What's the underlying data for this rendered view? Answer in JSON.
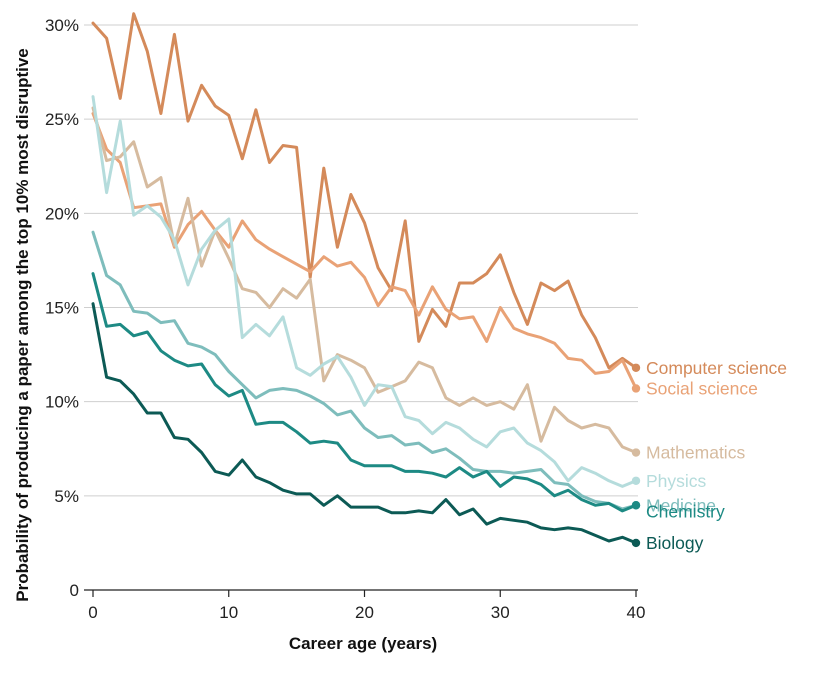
{
  "chart_data": {
    "type": "line",
    "title": "",
    "xlabel": "Career age (years)",
    "ylabel": "Probability of producing a paper among the top 10% most disruptive",
    "xlim": [
      0,
      40
    ],
    "ylim": [
      0,
      30
    ],
    "x_ticks": [
      {
        "value": 0,
        "label": "0"
      },
      {
        "value": 10,
        "label": "10"
      },
      {
        "value": 20,
        "label": "20"
      },
      {
        "value": 30,
        "label": "30"
      },
      {
        "value": 40,
        "label": "40"
      }
    ],
    "y_ticks": [
      {
        "value": 0,
        "label": "0"
      },
      {
        "value": 5,
        "label": "5%"
      },
      {
        "value": 10,
        "label": "10%"
      },
      {
        "value": 15,
        "label": "15%"
      },
      {
        "value": 20,
        "label": "20%"
      },
      {
        "value": 25,
        "label": "25%"
      },
      {
        "value": 30,
        "label": "30%"
      }
    ],
    "grid": "horizontal",
    "legend": "direct labels at right end of lines",
    "x": [
      0,
      1,
      2,
      3,
      4,
      5,
      6,
      7,
      8,
      9,
      10,
      11,
      12,
      13,
      14,
      15,
      16,
      17,
      18,
      19,
      20,
      21,
      22,
      23,
      24,
      25,
      26,
      27,
      28,
      29,
      30,
      31,
      32,
      33,
      34,
      35,
      36,
      37,
      38,
      39,
      40
    ],
    "series": [
      {
        "name": "Computer science",
        "color": "#D48A5A",
        "label_offset": 0,
        "values": [
          30.1,
          29.3,
          26.1,
          30.6,
          28.6,
          25.3,
          29.5,
          24.9,
          26.8,
          25.7,
          25.2,
          22.9,
          25.5,
          22.7,
          23.6,
          23.5,
          16.6,
          22.4,
          18.2,
          21.0,
          19.5,
          17.1,
          15.9,
          19.6,
          13.2,
          14.9,
          14.0,
          16.3,
          16.3,
          16.8,
          17.8,
          15.8,
          14.1,
          16.3,
          15.9,
          16.4,
          14.6,
          13.4,
          11.8,
          12.3,
          11.8
        ]
      },
      {
        "name": "Social science",
        "color": "#E9A276",
        "label_offset": 0,
        "values": [
          25.3,
          23.4,
          22.7,
          20.3,
          20.4,
          20.5,
          18.2,
          19.4,
          20.1,
          19.1,
          18.2,
          19.6,
          18.6,
          18.1,
          17.7,
          17.3,
          16.9,
          17.7,
          17.2,
          17.4,
          16.6,
          15.1,
          16.1,
          15.9,
          14.6,
          16.1,
          14.9,
          14.4,
          14.5,
          13.2,
          15.0,
          13.9,
          13.6,
          13.4,
          13.1,
          12.3,
          12.2,
          11.5,
          11.6,
          12.2,
          10.7
        ]
      },
      {
        "name": "Mathematics",
        "color": "#D6BB9F",
        "label_offset": 0,
        "values": [
          25.6,
          22.8,
          23.0,
          23.8,
          21.4,
          21.9,
          18.3,
          20.8,
          17.2,
          19.1,
          17.6,
          16.0,
          15.8,
          15.0,
          16.0,
          15.5,
          16.5,
          11.1,
          12.5,
          12.2,
          11.8,
          10.5,
          10.8,
          11.1,
          12.1,
          11.8,
          10.2,
          9.8,
          10.2,
          9.8,
          10.0,
          9.6,
          10.9,
          7.9,
          9.7,
          9.0,
          8.6,
          8.8,
          8.6,
          7.6,
          7.3
        ]
      },
      {
        "name": "Physics",
        "color": "#B5DCDC",
        "label_offset": 0,
        "values": [
          26.2,
          21.1,
          24.9,
          19.9,
          20.4,
          19.8,
          18.6,
          16.2,
          18.1,
          19.1,
          19.7,
          13.4,
          14.1,
          13.5,
          14.5,
          11.8,
          11.4,
          12.0,
          12.4,
          11.3,
          9.8,
          10.9,
          10.8,
          9.2,
          9.0,
          8.3,
          8.9,
          8.6,
          8.0,
          7.6,
          8.4,
          8.6,
          7.8,
          7.4,
          6.8,
          5.8,
          6.5,
          6.2,
          5.8,
          5.5,
          5.8
        ]
      },
      {
        "name": "Medicine",
        "color": "#7EBDBC",
        "label_offset": 0,
        "values": [
          19.0,
          16.7,
          16.2,
          14.8,
          14.7,
          14.2,
          14.3,
          13.1,
          12.9,
          12.5,
          11.6,
          10.9,
          10.2,
          10.6,
          10.7,
          10.6,
          10.3,
          9.9,
          9.3,
          9.5,
          8.6,
          8.1,
          8.2,
          7.7,
          7.8,
          7.3,
          7.5,
          7.0,
          6.4,
          6.3,
          6.3,
          6.2,
          6.3,
          6.4,
          5.7,
          5.6,
          5.0,
          4.7,
          4.6,
          4.3,
          4.5
        ]
      },
      {
        "name": "Chemistry",
        "color": "#1D8A84",
        "label_offset": 6,
        "values": [
          16.8,
          14.0,
          14.1,
          13.5,
          13.7,
          12.7,
          12.2,
          11.9,
          12.0,
          10.9,
          10.3,
          10.6,
          8.8,
          8.9,
          8.9,
          8.4,
          7.8,
          7.9,
          7.8,
          6.9,
          6.6,
          6.6,
          6.6,
          6.3,
          6.3,
          6.2,
          6.0,
          6.5,
          6.0,
          6.3,
          5.5,
          6.0,
          5.9,
          5.6,
          5.0,
          5.3,
          4.8,
          4.5,
          4.6,
          4.2,
          4.5
        ]
      },
      {
        "name": "Biology",
        "color": "#0C5A55",
        "label_offset": 0,
        "values": [
          15.2,
          11.3,
          11.1,
          10.4,
          9.4,
          9.4,
          8.1,
          8.0,
          7.3,
          6.3,
          6.1,
          6.9,
          6.0,
          5.7,
          5.3,
          5.1,
          5.1,
          4.5,
          5.0,
          4.4,
          4.4,
          4.4,
          4.1,
          4.1,
          4.2,
          4.1,
          4.8,
          4.0,
          4.3,
          3.5,
          3.8,
          3.7,
          3.6,
          3.3,
          3.2,
          3.3,
          3.2,
          2.9,
          2.6,
          2.8,
          2.5
        ]
      }
    ]
  }
}
